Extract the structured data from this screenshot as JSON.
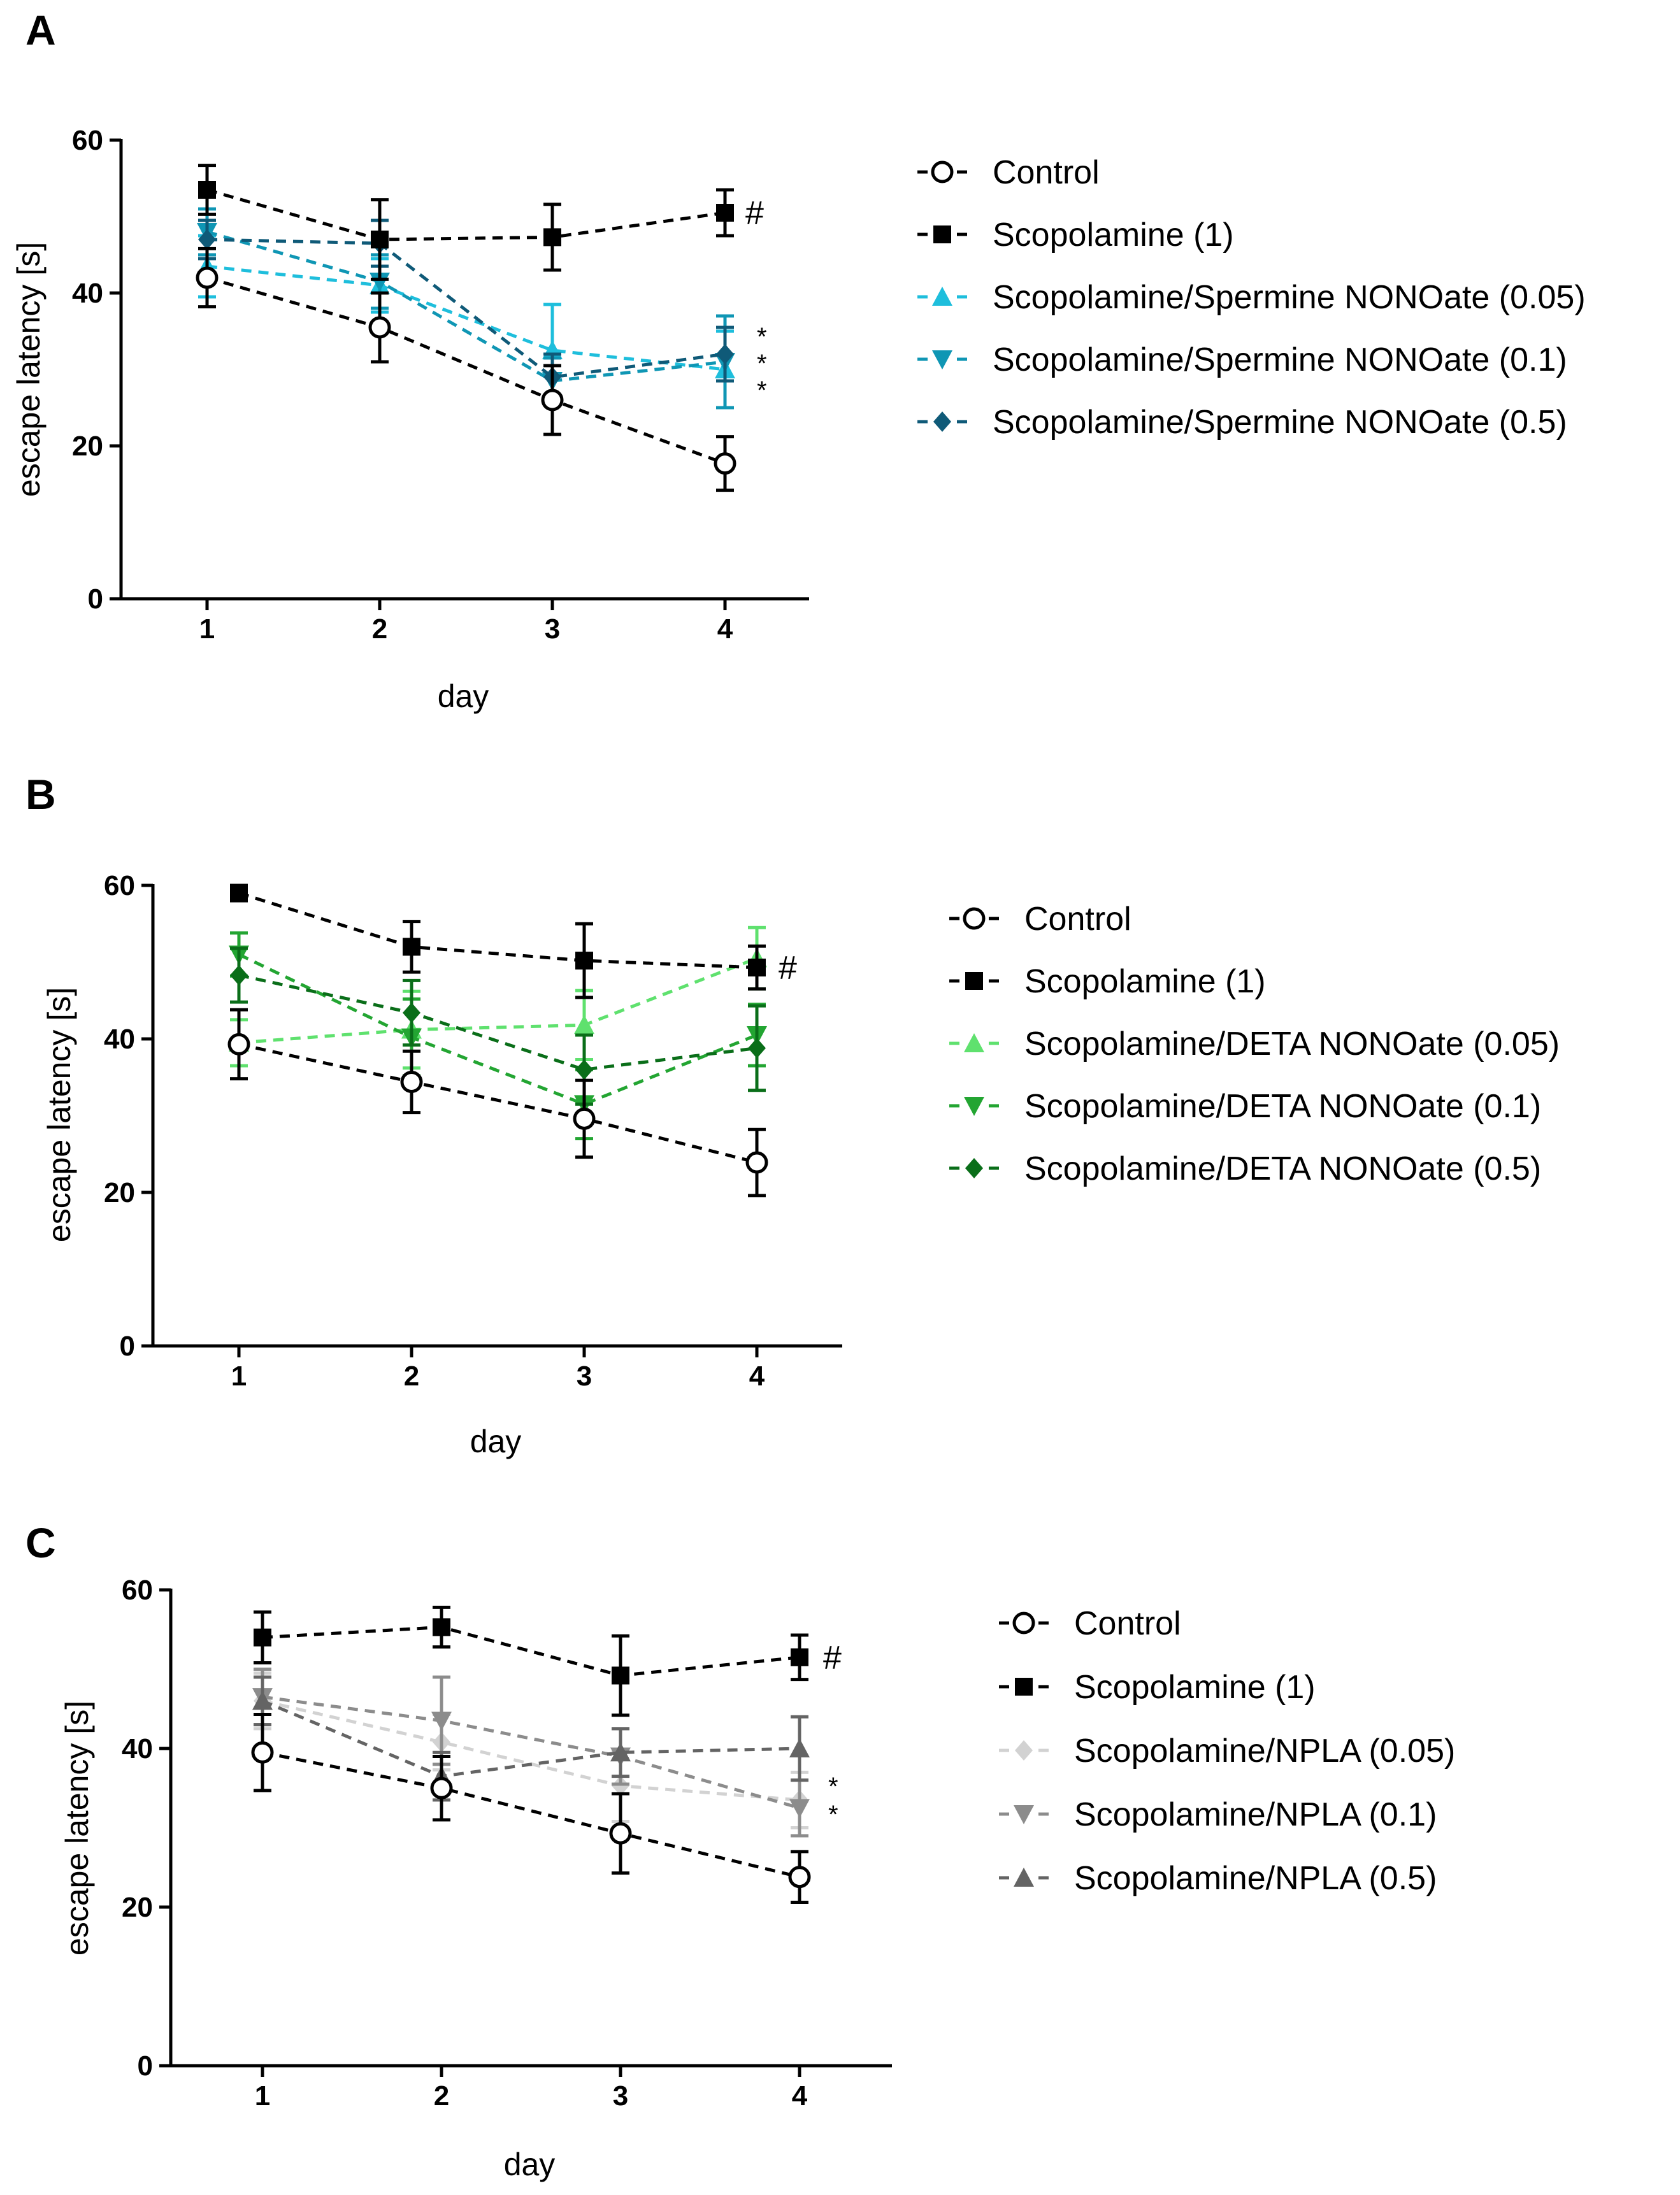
{
  "chart_data": [
    {
      "type": "line",
      "panel": "A",
      "xlabel": "day",
      "ylabel": "escape latency [s]",
      "x": [
        1,
        2,
        3,
        4
      ],
      "ylim": [
        0,
        60
      ],
      "yticks": [
        0,
        20,
        40,
        60
      ],
      "xticks": [
        "1",
        "2",
        "3",
        "4"
      ],
      "annotations": {
        "hash": "#",
        "stars": [
          "*",
          "*",
          "*"
        ]
      },
      "series": [
        {
          "name": "Control",
          "color": "#000000",
          "marker": "circle",
          "values": [
            42,
            35.5,
            26,
            17.7
          ],
          "errors": [
            3.8,
            4.5,
            4.5,
            3.5
          ]
        },
        {
          "name": "Scopolamine (1)",
          "color": "#000000",
          "marker": "square",
          "values": [
            53.5,
            47,
            47.3,
            50.5
          ],
          "errors": [
            3.2,
            5.2,
            4.3,
            3
          ]
        },
        {
          "name": "Scopolamine/Spermine NONOate (0.05)",
          "color": "#1ebedc",
          "marker": "triangle-up",
          "values": [
            43.5,
            41,
            32.5,
            30
          ],
          "errors": [
            4,
            3.5,
            6,
            5
          ]
        },
        {
          "name": "Scopolamine/Spermine NONOate (0.1)",
          "color": "#0f96b4",
          "marker": "triangle-down",
          "values": [
            48,
            41.5,
            28.5,
            31
          ],
          "errors": [
            3,
            3.5,
            3,
            6
          ]
        },
        {
          "name": "Scopolamine/Spermine NONOate (0.5)",
          "color": "#0f5a78",
          "marker": "diamond",
          "values": [
            47,
            46.5,
            29,
            32
          ],
          "errors": [
            2.5,
            3,
            3,
            3.5
          ]
        }
      ]
    },
    {
      "type": "line",
      "panel": "B",
      "xlabel": "day",
      "ylabel": "escape latency [s]",
      "x": [
        1,
        2,
        3,
        4
      ],
      "ylim": [
        0,
        60
      ],
      "yticks": [
        0,
        20,
        40,
        60
      ],
      "xticks": [
        "1",
        "2",
        "3",
        "4"
      ],
      "annotations": {
        "hash": "#",
        "stars": []
      },
      "series": [
        {
          "name": "Control",
          "color": "#000000",
          "marker": "circle",
          "values": [
            39.3,
            34.4,
            29.6,
            23.9
          ],
          "errors": [
            4.5,
            4,
            5,
            4.3
          ]
        },
        {
          "name": "Scopolamine (1)",
          "color": "#000000",
          "marker": "square",
          "values": [
            59,
            52,
            50.2,
            49.3
          ],
          "errors": [
            1,
            3.3,
            4.8,
            2.8
          ]
        },
        {
          "name": "Scopolamine/DETA NONOate (0.05)",
          "color": "#5fe16e",
          "marker": "triangle-up",
          "values": [
            39.5,
            41.2,
            41.8,
            50.5
          ],
          "errors": [
            3,
            5,
            4.5,
            4
          ]
        },
        {
          "name": "Scopolamine/DETA NONOate (0.1)",
          "color": "#23a532",
          "marker": "triangle-down",
          "values": [
            51,
            40.2,
            31.5,
            40.5
          ],
          "errors": [
            2.8,
            5,
            4.5,
            4
          ]
        },
        {
          "name": "Scopolamine/DETA NONOate (0.5)",
          "color": "#0a6e19",
          "marker": "diamond",
          "values": [
            48.3,
            43.4,
            36,
            38.8
          ],
          "errors": [
            3.5,
            4.2,
            4.5,
            5.5
          ]
        }
      ]
    },
    {
      "type": "line",
      "panel": "C",
      "xlabel": "day",
      "ylabel": "escape latency [s]",
      "x": [
        1,
        2,
        3,
        4
      ],
      "ylim": [
        0,
        60
      ],
      "yticks": [
        0,
        20,
        40,
        60
      ],
      "xticks": [
        "1",
        "2",
        "3",
        "4"
      ],
      "annotations": {
        "hash": "#",
        "stars": [
          "*",
          "*"
        ]
      },
      "series": [
        {
          "name": "Control",
          "color": "#000000",
          "marker": "circle",
          "values": [
            39.5,
            35,
            29.3,
            23.8
          ],
          "errors": [
            4.8,
            4,
            5,
            3.2
          ]
        },
        {
          "name": "Scopolamine (1)",
          "color": "#000000",
          "marker": "square",
          "values": [
            54,
            55.3,
            49.2,
            51.5
          ],
          "errors": [
            3.2,
            2.5,
            5,
            2.8
          ]
        },
        {
          "name": "Scopolamine/NPLA (0.05)",
          "color": "#d2d2d2",
          "marker": "diamond",
          "values": [
            46,
            40.8,
            35.3,
            33.5
          ],
          "errors": [
            3.5,
            3.5,
            4.5,
            3.5
          ]
        },
        {
          "name": "Scopolamine/NPLA (0.1)",
          "color": "#8c8c8c",
          "marker": "triangle-down",
          "values": [
            46.5,
            43.5,
            39,
            32.5
          ],
          "errors": [
            3.5,
            5.5,
            3.5,
            3.5
          ]
        },
        {
          "name": "Scopolamine/NPLA (0.5)",
          "color": "#646464",
          "marker": "triangle-up",
          "values": [
            46,
            36.5,
            39.5,
            40
          ],
          "errors": [
            3,
            3,
            3,
            4
          ]
        }
      ]
    }
  ]
}
